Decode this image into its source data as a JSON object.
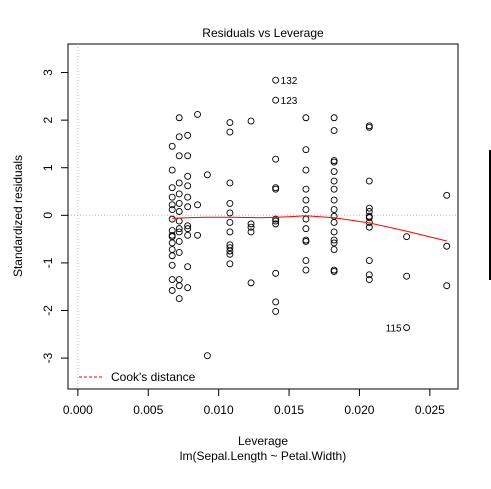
{
  "chart_data": {
    "type": "scatter",
    "title": "Residuals vs Leverage",
    "xlabel": "Leverage",
    "subtitle": "lm(Sepal.Length ~ Petal.Width)",
    "ylabel": "Standardized residuals",
    "xlim": [
      -0.0007,
      0.027
    ],
    "ylim": [
      -3.65,
      3.6
    ],
    "xticks": [
      0.0,
      0.005,
      0.01,
      0.015,
      0.02,
      0.025
    ],
    "xtick_labels": [
      "0.000",
      "0.005",
      "0.010",
      "0.015",
      "0.020",
      "0.025"
    ],
    "yticks": [
      -3,
      -2,
      -1,
      0,
      1,
      2,
      3
    ],
    "ytick_labels": [
      "-3",
      "-2",
      "-1",
      "0",
      "1",
      "2",
      "3"
    ],
    "grid": false,
    "reference_lines": {
      "x": 0,
      "y": 0
    },
    "legend": {
      "position": "bottom-left",
      "entries": [
        {
          "name": "Cook's distance",
          "color": "#ff0000",
          "style": "dashed"
        }
      ]
    },
    "smooth_color": "#ff0000",
    "point_labels": [
      {
        "text": "132",
        "x": 0.01405,
        "y": 2.84
      },
      {
        "text": "123",
        "x": 0.01405,
        "y": 2.42
      },
      {
        "text": "115",
        "x": 0.02335,
        "y": -2.36
      }
    ],
    "smooth": {
      "x": [
        0.0067,
        0.009,
        0.011,
        0.013,
        0.015,
        0.0162,
        0.0182,
        0.0207,
        0.0233,
        0.0262
      ],
      "y": [
        -0.06,
        -0.04,
        -0.04,
        -0.05,
        -0.03,
        -0.01,
        -0.05,
        -0.16,
        -0.33,
        -0.54
      ]
    },
    "series": [
      {
        "x": [
          0.0067,
          0.0067,
          0.0067,
          0.0067,
          0.0067,
          0.0067,
          0.0067,
          0.0067,
          0.0067,
          0.0067,
          0.0067,
          0.0067,
          0.0067,
          0.0067,
          0.0067,
          0.0067,
          0.0072,
          0.0072,
          0.0072,
          0.0072,
          0.0072,
          0.0072,
          0.0072,
          0.0072,
          0.0072,
          0.0072,
          0.0072,
          0.0072,
          0.0072,
          0.0072,
          0.0072,
          0.0078,
          0.0078,
          0.0078,
          0.0078,
          0.0078,
          0.0078,
          0.0078,
          0.0078,
          0.0078,
          0.0078,
          0.0078,
          0.0085,
          0.0085,
          0.0085,
          0.0092,
          0.0092,
          0.0108,
          0.0108,
          0.0108,
          0.0108,
          0.0108,
          0.0108,
          0.0108,
          0.0108,
          0.0108,
          0.0108,
          0.0108,
          0.0108,
          0.0123,
          0.0123,
          0.0123,
          0.0123,
          0.0123,
          0.01405,
          0.01405,
          0.01405,
          0.01405,
          0.01405,
          0.01405,
          0.01405,
          0.01405,
          0.01405,
          0.01405,
          0.01405,
          0.0162,
          0.0162,
          0.0162,
          0.0162,
          0.0162,
          0.0162,
          0.0162,
          0.0162,
          0.0162,
          0.0162,
          0.0162,
          0.0162,
          0.0182,
          0.0182,
          0.0182,
          0.0182,
          0.0182,
          0.0182,
          0.0182,
          0.0182,
          0.0182,
          0.0182,
          0.0182,
          0.0182,
          0.0182,
          0.0182,
          0.0182,
          0.0182,
          0.0182,
          0.0207,
          0.0207,
          0.0207,
          0.0207,
          0.0207,
          0.0207,
          0.0207,
          0.0207,
          0.0207,
          0.0207,
          0.0207,
          0.0207,
          0.02335,
          0.02335,
          0.02335,
          0.0262,
          0.0262,
          0.0262
        ],
        "y": [
          1.45,
          0.95,
          0.58,
          0.38,
          0.22,
          0.12,
          -0.08,
          -0.32,
          -0.42,
          -0.58,
          -0.72,
          -0.85,
          -1.05,
          -1.35,
          -1.58,
          -0.45,
          2.05,
          1.65,
          1.25,
          0.68,
          0.45,
          0.25,
          0.08,
          -0.12,
          -0.28,
          -0.55,
          -0.78,
          -1.35,
          -1.48,
          -1.75,
          -0.35,
          1.68,
          1.25,
          0.82,
          0.62,
          0.38,
          0.18,
          -0.22,
          -0.42,
          -1.08,
          -1.52,
          -0.28,
          2.12,
          0.22,
          -0.42,
          0.85,
          -2.95,
          1.95,
          1.75,
          0.68,
          0.25,
          0.05,
          -0.15,
          -0.35,
          -0.62,
          -0.75,
          -0.82,
          -1.02,
          -0.68,
          1.98,
          -0.18,
          -0.35,
          -1.42,
          -0.25,
          2.84,
          2.42,
          1.18,
          0.58,
          0.55,
          -0.08,
          -0.12,
          -0.18,
          -1.22,
          -1.82,
          -2.02,
          2.05,
          1.38,
          0.95,
          0.55,
          0.32,
          0.12,
          -0.08,
          -0.28,
          -0.52,
          -0.55,
          -0.95,
          -1.15,
          2.05,
          1.78,
          1.15,
          1.12,
          0.92,
          0.72,
          0.55,
          0.32,
          0.12,
          -0.02,
          -0.15,
          -0.35,
          -0.52,
          -0.58,
          -0.72,
          -1.15,
          -1.18,
          1.88,
          1.85,
          0.72,
          0.15,
          0.08,
          -0.02,
          -0.05,
          -0.15,
          -0.25,
          -0.95,
          -1.25,
          -1.35,
          -0.45,
          -1.28,
          -2.36,
          0.42,
          -0.65,
          -1.48
        ]
      }
    ]
  }
}
